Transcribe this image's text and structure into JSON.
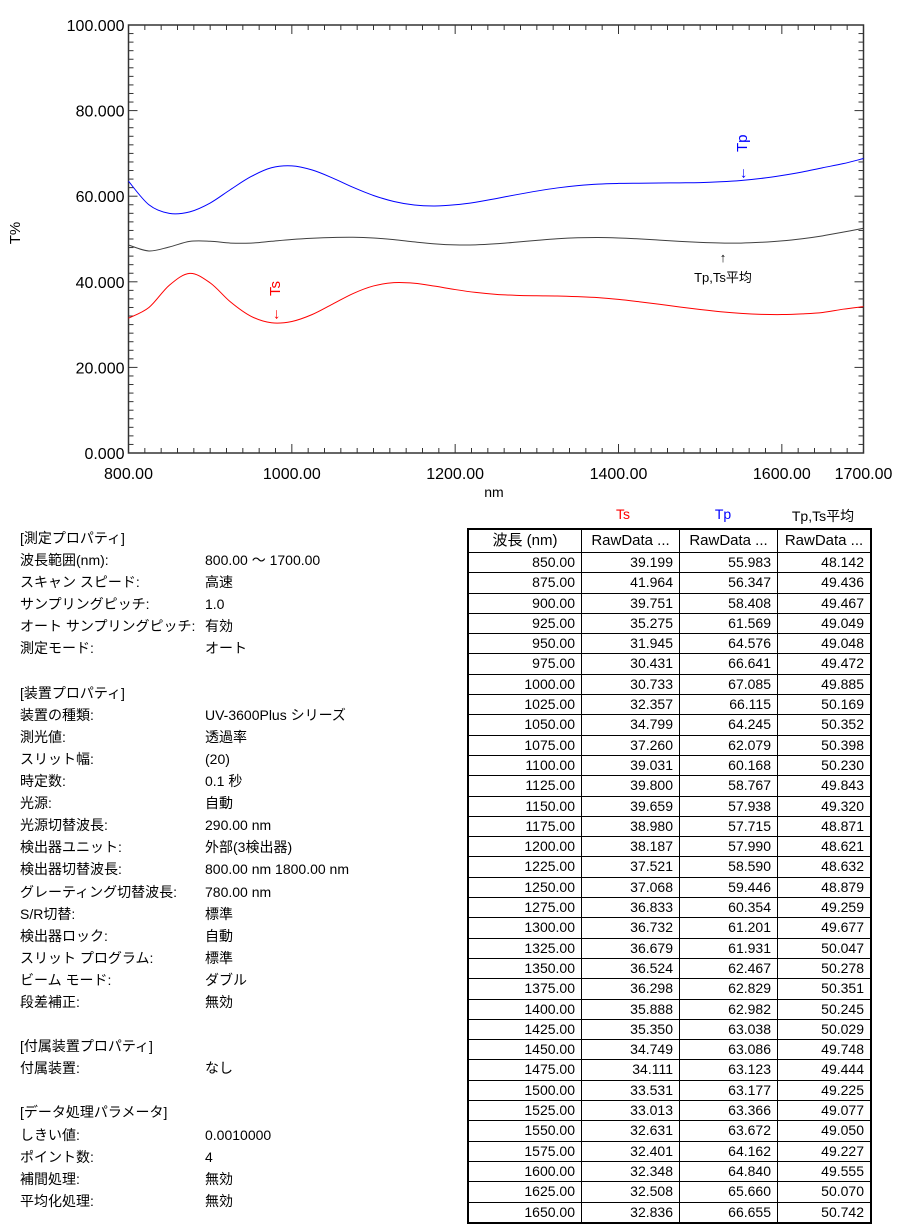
{
  "chart_data": {
    "type": "line",
    "xlabel": "nm",
    "ylabel": "T%",
    "xlim": [
      800,
      1700
    ],
    "ylim": [
      0,
      100
    ],
    "x_ticks": [
      "800.00",
      "1000.00",
      "1200.00",
      "1400.00",
      "1600.00",
      "1700.00"
    ],
    "x_tick_values": [
      800,
      1000,
      1200,
      1400,
      1600,
      1700
    ],
    "y_ticks": [
      "0.000",
      "20.000",
      "40.000",
      "60.000",
      "80.000",
      "100.000"
    ],
    "y_tick_values": [
      0,
      20,
      40,
      60,
      80,
      100
    ],
    "grid": false,
    "x": [
      800,
      825,
      850,
      875,
      900,
      925,
      950,
      975,
      1000,
      1025,
      1050,
      1075,
      1100,
      1125,
      1150,
      1175,
      1200,
      1225,
      1250,
      1275,
      1300,
      1325,
      1350,
      1375,
      1400,
      1425,
      1450,
      1475,
      1500,
      1525,
      1550,
      1575,
      1600,
      1625,
      1650,
      1675,
      1700
    ],
    "series": [
      {
        "name": "Ts",
        "color": "#ff0000",
        "values": [
          31.5,
          34.0,
          39.199,
          41.964,
          39.751,
          35.275,
          31.945,
          30.431,
          30.733,
          32.357,
          34.799,
          37.26,
          39.031,
          39.8,
          39.659,
          38.98,
          38.187,
          37.521,
          37.068,
          36.833,
          36.732,
          36.679,
          36.524,
          36.298,
          35.888,
          35.35,
          34.749,
          34.111,
          33.531,
          33.013,
          32.631,
          32.401,
          32.348,
          32.508,
          32.836,
          33.6,
          34.2
        ]
      },
      {
        "name": "Tp",
        "color": "#0000ff",
        "values": [
          63.5,
          58.0,
          55.983,
          56.347,
          58.408,
          61.569,
          64.576,
          66.641,
          67.085,
          66.115,
          64.245,
          62.079,
          60.168,
          58.767,
          57.938,
          57.715,
          57.99,
          58.59,
          59.446,
          60.354,
          61.201,
          61.931,
          62.467,
          62.829,
          62.982,
          63.038,
          63.086,
          63.123,
          63.177,
          63.366,
          63.672,
          64.162,
          64.84,
          65.66,
          66.655,
          67.6,
          68.8
        ]
      },
      {
        "name": "Tp,Ts平均",
        "color": "#404040",
        "values": [
          48.6,
          47.2,
          48.142,
          49.436,
          49.467,
          49.049,
          49.048,
          49.472,
          49.885,
          50.169,
          50.352,
          50.398,
          50.23,
          49.843,
          49.32,
          48.871,
          48.621,
          48.632,
          48.879,
          49.259,
          49.677,
          50.047,
          50.278,
          50.351,
          50.245,
          50.029,
          49.748,
          49.444,
          49.225,
          49.077,
          49.05,
          49.227,
          49.555,
          50.07,
          50.742,
          51.6,
          52.5
        ]
      }
    ],
    "annotations": [
      {
        "text": "Ts",
        "arrow": "←",
        "color": "#ff0000",
        "x": 978
      },
      {
        "text": "Tp",
        "arrow": "←",
        "color": "#0000ff",
        "x": 1550
      },
      {
        "text": "Tp,Ts平均",
        "arrow": "↑",
        "color": "#000000",
        "x": 1530
      }
    ]
  },
  "properties": {
    "sections": [
      {
        "title": "[測定プロパティ]",
        "rows": [
          {
            "key": "波長範囲(nm):",
            "value": "800.00 ～ 1700.00"
          },
          {
            "key": "スキャン スピード:",
            "value": "高速"
          },
          {
            "key": "サンプリングピッチ:",
            "value": "1.0"
          },
          {
            "key": "オート サンプリングピッチ:",
            "value": "有効"
          },
          {
            "key": "測定モード:",
            "value": "オート"
          }
        ]
      },
      {
        "title": "[装置プロパティ]",
        "rows": [
          {
            "key": "装置の種類:",
            "value": "UV-3600Plus シリーズ"
          },
          {
            "key": "測光値:",
            "value": "透過率"
          },
          {
            "key": "スリット幅:",
            "value": "(20)"
          },
          {
            "key": "時定数:",
            "value": "0.1 秒"
          },
          {
            "key": "光源:",
            "value": "自動"
          },
          {
            "key": "光源切替波長:",
            "value": "290.00 nm"
          },
          {
            "key": "検出器ユニット:",
            "value": "外部(3検出器)"
          },
          {
            "key": "検出器切替波長:",
            "value": "800.00 nm  1800.00 nm"
          },
          {
            "key": "グレーティング切替波長:",
            "value": "780.00 nm"
          },
          {
            "key": "S/R切替:",
            "value": "標準"
          },
          {
            "key": "検出器ロック:",
            "value": "自動"
          },
          {
            "key": "スリット プログラム:",
            "value": "標準"
          },
          {
            "key": "ビーム モード:",
            "value": "ダブル"
          },
          {
            "key": "段差補正:",
            "value": "無効"
          }
        ]
      },
      {
        "title": "[付属装置プロパティ]",
        "rows": [
          {
            "key": "付属装置:",
            "value": "なし"
          }
        ]
      },
      {
        "title": "[データ処理パラメータ]",
        "rows": [
          {
            "key": "しきい値:",
            "value": "0.0010000"
          },
          {
            "key": "ポイント数:",
            "value": "4"
          },
          {
            "key": "補間処理:",
            "value": "無効"
          },
          {
            "key": "平均化処理:",
            "value": "無効"
          }
        ]
      }
    ]
  },
  "table": {
    "series_labels": [
      {
        "text": "Ts",
        "color": "#ff0000"
      },
      {
        "text": "Tp",
        "color": "#0000ff"
      },
      {
        "text": "Tp,Ts平均",
        "color": "#000000"
      }
    ],
    "headers": [
      "波長 (nm)",
      "RawData ...",
      "RawData ...",
      "RawData ..."
    ],
    "rows": [
      [
        "850.00",
        "39.199",
        "55.983",
        "48.142"
      ],
      [
        "875.00",
        "41.964",
        "56.347",
        "49.436"
      ],
      [
        "900.00",
        "39.751",
        "58.408",
        "49.467"
      ],
      [
        "925.00",
        "35.275",
        "61.569",
        "49.049"
      ],
      [
        "950.00",
        "31.945",
        "64.576",
        "49.048"
      ],
      [
        "975.00",
        "30.431",
        "66.641",
        "49.472"
      ],
      [
        "1000.00",
        "30.733",
        "67.085",
        "49.885"
      ],
      [
        "1025.00",
        "32.357",
        "66.115",
        "50.169"
      ],
      [
        "1050.00",
        "34.799",
        "64.245",
        "50.352"
      ],
      [
        "1075.00",
        "37.260",
        "62.079",
        "50.398"
      ],
      [
        "1100.00",
        "39.031",
        "60.168",
        "50.230"
      ],
      [
        "1125.00",
        "39.800",
        "58.767",
        "49.843"
      ],
      [
        "1150.00",
        "39.659",
        "57.938",
        "49.320"
      ],
      [
        "1175.00",
        "38.980",
        "57.715",
        "48.871"
      ],
      [
        "1200.00",
        "38.187",
        "57.990",
        "48.621"
      ],
      [
        "1225.00",
        "37.521",
        "58.590",
        "48.632"
      ],
      [
        "1250.00",
        "37.068",
        "59.446",
        "48.879"
      ],
      [
        "1275.00",
        "36.833",
        "60.354",
        "49.259"
      ],
      [
        "1300.00",
        "36.732",
        "61.201",
        "49.677"
      ],
      [
        "1325.00",
        "36.679",
        "61.931",
        "50.047"
      ],
      [
        "1350.00",
        "36.524",
        "62.467",
        "50.278"
      ],
      [
        "1375.00",
        "36.298",
        "62.829",
        "50.351"
      ],
      [
        "1400.00",
        "35.888",
        "62.982",
        "50.245"
      ],
      [
        "1425.00",
        "35.350",
        "63.038",
        "50.029"
      ],
      [
        "1450.00",
        "34.749",
        "63.086",
        "49.748"
      ],
      [
        "1475.00",
        "34.111",
        "63.123",
        "49.444"
      ],
      [
        "1500.00",
        "33.531",
        "63.177",
        "49.225"
      ],
      [
        "1525.00",
        "33.013",
        "63.366",
        "49.077"
      ],
      [
        "1550.00",
        "32.631",
        "63.672",
        "49.050"
      ],
      [
        "1575.00",
        "32.401",
        "64.162",
        "49.227"
      ],
      [
        "1600.00",
        "32.348",
        "64.840",
        "49.555"
      ],
      [
        "1625.00",
        "32.508",
        "65.660",
        "50.070"
      ],
      [
        "1650.00",
        "32.836",
        "66.655",
        "50.742"
      ]
    ]
  }
}
